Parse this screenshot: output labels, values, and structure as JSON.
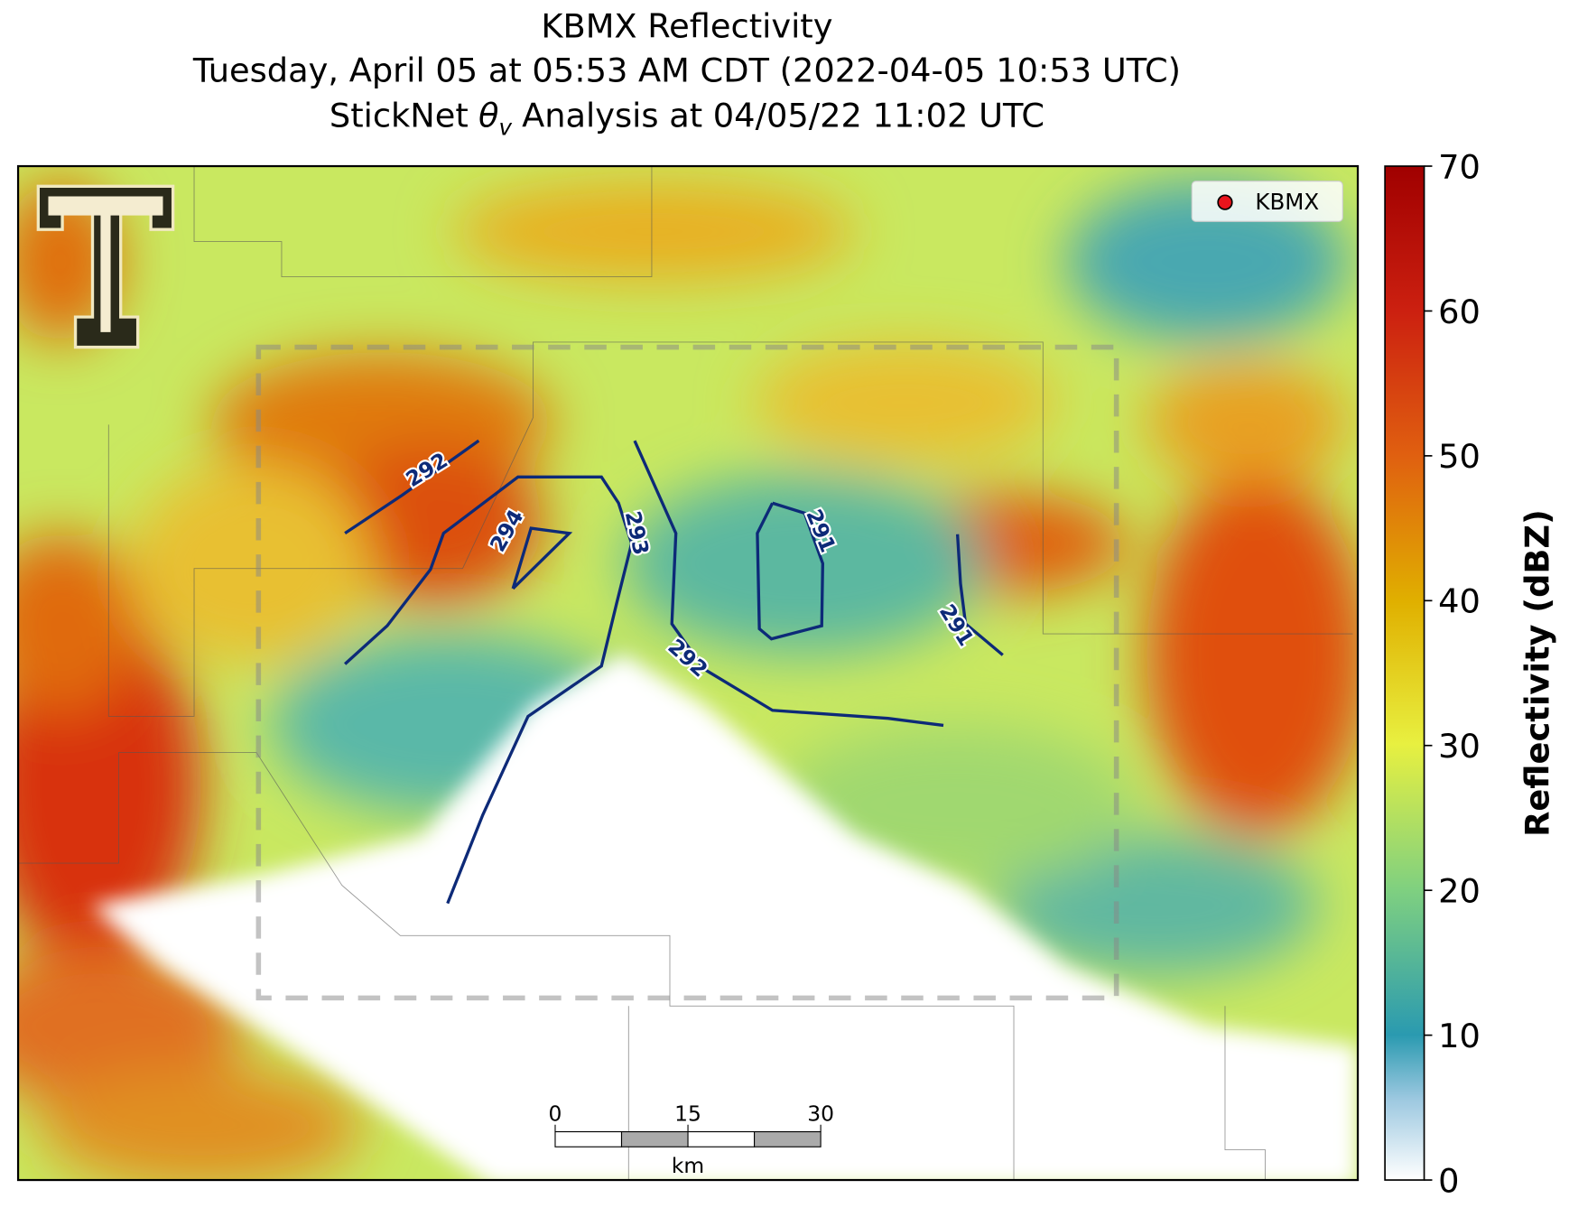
{
  "title": {
    "line1": "KBMX Reflectivity",
    "line2": "Tuesday, April 05 at 05:53 AM CDT (2022-04-05 10:53 UTC)",
    "line3": {
      "prefix": "StickNet",
      "symbol": "θ",
      "subscript": "v",
      "suffix": "Analysis at 04/05/22 11:02 UTC"
    }
  },
  "legend": {
    "label": "KBMX",
    "color": "#e8141c"
  },
  "contours": [
    {
      "value": 292
    },
    {
      "value": 294
    },
    {
      "value": 293
    },
    {
      "value": 292
    },
    {
      "value": 291
    },
    {
      "value": 291
    }
  ],
  "colorbar": {
    "label": "Reflectivity (dBZ)",
    "lim": [
      0,
      70
    ],
    "ticks": [
      0,
      10,
      20,
      30,
      40,
      50,
      60,
      70
    ]
  },
  "scale_bar": {
    "ticks": [
      0,
      15,
      30
    ],
    "unit": "km"
  }
}
